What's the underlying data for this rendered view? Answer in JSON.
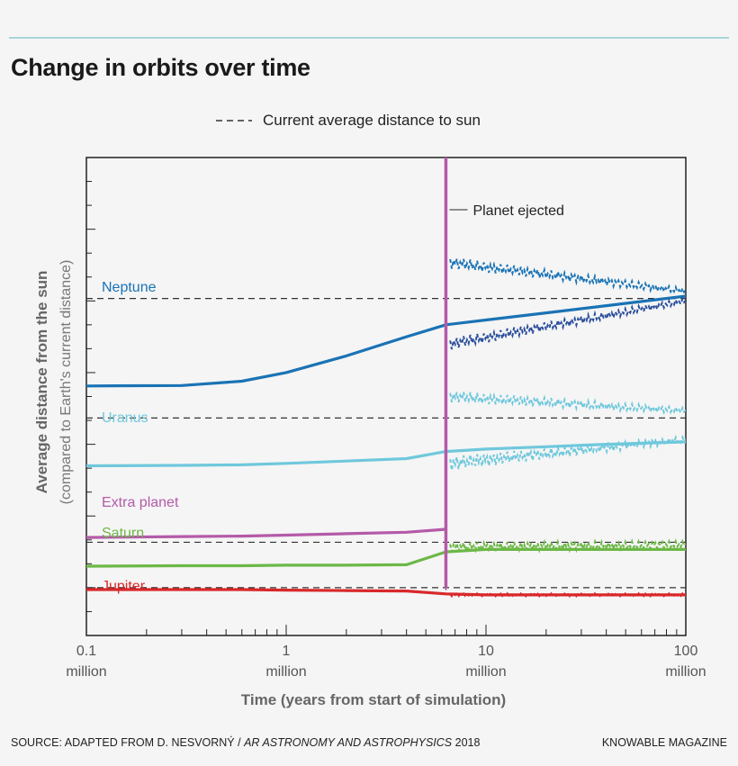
{
  "title": "Change in orbits over time",
  "legend": {
    "dashed_label": "Current average distance to sun"
  },
  "footer": {
    "source_prefix": "SOURCE: ADAPTED FROM D. NESVORNÝ / ",
    "source_journal": "AR ASTRONOMY AND ASTROPHYSICS",
    "source_year": " 2018",
    "brand": "KNOWABLE MAGAZINE"
  },
  "colors": {
    "neptune": "#1a73b5",
    "neptune_dark": "#2b4f9c",
    "uranus": "#6fc8dc",
    "extra": "#b45aa8",
    "saturn": "#6cb846",
    "jupiter": "#d9282a",
    "dashed": "#333333",
    "axis": "#222222"
  },
  "chart_data": {
    "type": "line",
    "title": "Change in orbits over time",
    "xlabel": "Time (years from start of simulation)",
    "ylabel": "Average distance from the sun",
    "ylabel_sub": "(compared to Earth's current distance)",
    "xscale": "log",
    "xlim": [
      0.1,
      100
    ],
    "x_unit": "million years",
    "x_ticks": [
      {
        "value": 0.1,
        "label": "0.1",
        "sub": "million"
      },
      {
        "value": 1,
        "label": "1",
        "sub": "million"
      },
      {
        "value": 10,
        "label": "10",
        "sub": "million"
      },
      {
        "value": 100,
        "label": "100",
        "sub": "million"
      }
    ],
    "ylim": [
      0,
      1
    ],
    "y_tick_labels": "none",
    "ejection": {
      "x": 6.3,
      "label": "Planet ejected"
    },
    "current_distance_lines": [
      {
        "planet": "Neptune",
        "y": 0.705
      },
      {
        "planet": "Uranus",
        "y": 0.455
      },
      {
        "planet": "Saturn",
        "y": 0.195
      },
      {
        "planet": "Jupiter",
        "y": 0.1
      }
    ],
    "series": [
      {
        "name": "Neptune",
        "label": "Neptune",
        "x": [
          0.1,
          0.3,
          0.6,
          1,
          2,
          4,
          6.3,
          10,
          20,
          40,
          100
        ],
        "y": [
          0.522,
          0.523,
          0.532,
          0.55,
          0.585,
          0.625,
          0.65,
          0.66,
          0.675,
          0.69,
          0.71
        ]
      },
      {
        "name": "Uranus",
        "label": "Uranus",
        "x": [
          0.1,
          0.3,
          0.6,
          1,
          2,
          4,
          6.3,
          10,
          20,
          40,
          100
        ],
        "y": [
          0.355,
          0.356,
          0.357,
          0.36,
          0.365,
          0.37,
          0.385,
          0.39,
          0.395,
          0.4,
          0.405
        ]
      },
      {
        "name": "Extra planet",
        "label": "Extra planet",
        "x": [
          0.1,
          0.3,
          0.6,
          1,
          2,
          4,
          6.2
        ],
        "y": [
          0.205,
          0.207,
          0.208,
          0.21,
          0.213,
          0.216,
          0.222
        ]
      },
      {
        "name": "Saturn",
        "label": "Saturn",
        "x": [
          0.1,
          0.3,
          0.6,
          1,
          2,
          4,
          6.3,
          10,
          20,
          40,
          100
        ],
        "y": [
          0.145,
          0.146,
          0.146,
          0.147,
          0.147,
          0.148,
          0.175,
          0.18,
          0.18,
          0.18,
          0.18
        ]
      },
      {
        "name": "Jupiter",
        "label": "Jupiter",
        "x": [
          0.1,
          0.3,
          0.6,
          1,
          2,
          4,
          6.3,
          10,
          20,
          40,
          100
        ],
        "y": [
          0.096,
          0.096,
          0.096,
          0.095,
          0.094,
          0.093,
          0.087,
          0.085,
          0.085,
          0.085,
          0.085
        ]
      }
    ]
  }
}
